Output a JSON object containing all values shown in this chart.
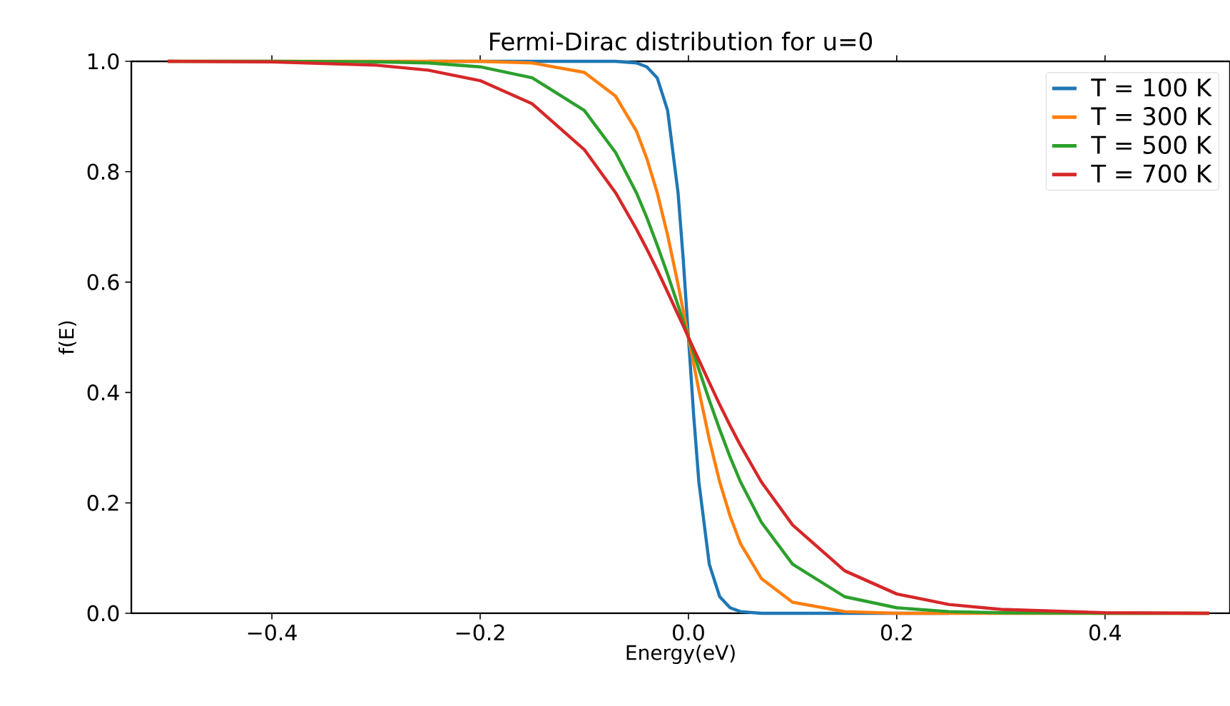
{
  "chart_data": {
    "type": "line",
    "title": "Fermi-Dirac distribution for u=0",
    "xlabel": "Energy(eV)",
    "ylabel": "f(E)",
    "x": [
      -0.5,
      -0.4,
      -0.3,
      -0.25,
      -0.2,
      -0.15,
      -0.1,
      -0.07,
      -0.05,
      -0.04,
      -0.03,
      -0.02,
      -0.01,
      -0.005,
      0,
      0.005,
      0.01,
      0.02,
      0.03,
      0.04,
      0.05,
      0.07,
      0.1,
      0.15,
      0.2,
      0.25,
      0.3,
      0.4,
      0.5
    ],
    "series": [
      {
        "name": "T = 100 K",
        "color": "#1f77b4",
        "values": [
          null,
          null,
          null,
          1.0,
          1.0,
          1.0,
          1.0,
          1.0,
          0.997,
          0.99,
          0.97,
          0.911,
          0.762,
          0.641,
          0.5,
          0.359,
          0.238,
          0.089,
          0.03,
          0.01,
          0.003,
          0.0,
          0.0,
          0.0,
          0.0,
          0.0,
          null,
          null,
          null
        ]
      },
      {
        "name": "T = 300 K",
        "color": "#ff7f0e",
        "values": [
          1.0,
          1.0,
          1.0,
          1.0,
          1.0,
          0.997,
          0.98,
          0.937,
          0.874,
          0.824,
          0.762,
          0.685,
          0.596,
          0.548,
          0.5,
          0.452,
          0.404,
          0.315,
          0.238,
          0.176,
          0.126,
          0.063,
          0.02,
          0.003,
          0.0,
          0.0,
          0.0,
          0.0,
          0.0
        ]
      },
      {
        "name": "T = 500 K",
        "color": "#2ca02c",
        "values": [
          1.0,
          1.0,
          0.999,
          0.997,
          0.99,
          0.97,
          0.911,
          0.835,
          0.762,
          0.717,
          0.667,
          0.614,
          0.558,
          0.529,
          0.5,
          0.471,
          0.442,
          0.386,
          0.333,
          0.283,
          0.238,
          0.165,
          0.089,
          0.03,
          0.01,
          0.003,
          0.001,
          0.0,
          0.0
        ]
      },
      {
        "name": "T = 700 K",
        "color": "#d62728",
        "values": [
          1.0,
          0.999,
          0.993,
          0.984,
          0.965,
          0.923,
          0.84,
          0.762,
          0.696,
          0.66,
          0.622,
          0.582,
          0.541,
          0.521,
          0.5,
          0.479,
          0.459,
          0.418,
          0.378,
          0.34,
          0.304,
          0.238,
          0.16,
          0.077,
          0.035,
          0.016,
          0.007,
          0.001,
          0.0
        ]
      }
    ],
    "xlim": [
      -0.535,
      0.52
    ],
    "ylim": [
      0,
      1
    ],
    "xticks": [
      {
        "value": -0.4,
        "label": "−0.4"
      },
      {
        "value": -0.2,
        "label": "−0.2"
      },
      {
        "value": 0,
        "label": "0.0"
      },
      {
        "value": 0.2,
        "label": "0.2"
      },
      {
        "value": 0.4,
        "label": "0.4"
      }
    ],
    "yticks": [
      {
        "value": 0,
        "label": "0.0"
      },
      {
        "value": 0.2,
        "label": "0.2"
      },
      {
        "value": 0.4,
        "label": "0.4"
      },
      {
        "value": 0.6,
        "label": "0.6"
      },
      {
        "value": 0.8,
        "label": "0.8"
      },
      {
        "value": 1,
        "label": "1.0"
      }
    ],
    "legend": "top right",
    "marker": "none",
    "line_style": "solid",
    "grid": false
  }
}
